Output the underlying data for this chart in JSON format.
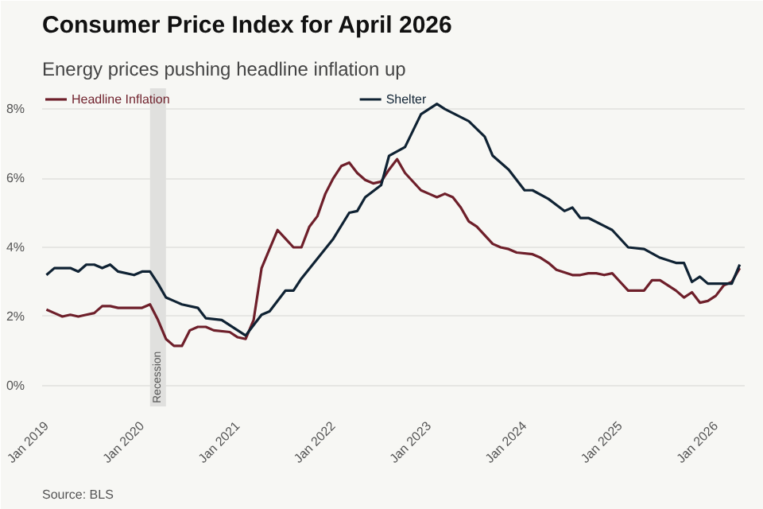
{
  "chart_data": {
    "type": "line",
    "title": "Consumer Price Index for April 2026",
    "subtitle": "Energy prices pushing headline inflation up",
    "annotations": [
      "Source: BLS"
    ],
    "legend": "top left",
    "grid": "y",
    "line_style": "solid",
    "xlim": [
      "2018-12-15",
      "2026-04-20"
    ],
    "xticks": [
      {
        "value": "2019-01",
        "label": "Jan 2019"
      },
      {
        "value": "2020-01",
        "label": "Jan 2020"
      },
      {
        "value": "2021-01",
        "label": "Jan 2021"
      },
      {
        "value": "2022-01",
        "label": "Jan 2022"
      },
      {
        "value": "2023-01",
        "label": "Jan 2023"
      },
      {
        "value": "2024-01",
        "label": "Jan 2024"
      },
      {
        "value": "2025-01",
        "label": "Jan 2025"
      },
      {
        "value": "2026-01",
        "label": "Jan 2026"
      }
    ],
    "ylim": [
      -0.6,
      8.6
    ],
    "yticks": [
      {
        "value": 0,
        "label": "0%"
      },
      {
        "value": 2,
        "label": "2%"
      },
      {
        "value": 4,
        "label": "4%"
      },
      {
        "value": 6,
        "label": "6%"
      },
      {
        "value": 8,
        "label": "8%"
      }
    ],
    "bands": [
      {
        "axis": "x",
        "from": "2020-02",
        "to": "2020-04",
        "label": "Recession",
        "color": "#e0e0de"
      }
    ],
    "series": [
      {
        "name": "Headline Inflation",
        "color": "#6e1f2a",
        "x": [
          "2019-01",
          "2019-02",
          "2019-03",
          "2019-04",
          "2019-05",
          "2019-06",
          "2019-07",
          "2019-08",
          "2019-09",
          "2019-10",
          "2019-12",
          "2020-01",
          "2020-02",
          "2020-03",
          "2020-04",
          "2020-05",
          "2020-06",
          "2020-07",
          "2020-08",
          "2020-09",
          "2020-10",
          "2020-12",
          "2021-01",
          "2021-02",
          "2021-03",
          "2021-04",
          "2021-05",
          "2021-06",
          "2021-07",
          "2021-08",
          "2021-09",
          "2021-10",
          "2021-11",
          "2021-12",
          "2022-01",
          "2022-02",
          "2022-03",
          "2022-04",
          "2022-05",
          "2022-06",
          "2022-07",
          "2022-08",
          "2022-09",
          "2022-10",
          "2022-12",
          "2023-01",
          "2023-02",
          "2023-03",
          "2023-04",
          "2023-05",
          "2023-06",
          "2023-07",
          "2023-09",
          "2023-10",
          "2023-11",
          "2023-12",
          "2024-02",
          "2024-03",
          "2024-04",
          "2024-05",
          "2024-07",
          "2024-08",
          "2024-09",
          "2024-10",
          "2024-11",
          "2024-12",
          "2025-01",
          "2025-02",
          "2025-04",
          "2025-05",
          "2025-06",
          "2025-07",
          "2025-08",
          "2025-09",
          "2025-10",
          "2025-11",
          "2025-12",
          "2026-01",
          "2026-02",
          "2026-03",
          "2026-04"
        ],
        "values": [
          2.2,
          2.1,
          2.0,
          2.05,
          2.0,
          2.05,
          2.1,
          2.3,
          2.3,
          2.25,
          2.25,
          2.25,
          2.35,
          1.9,
          1.35,
          1.15,
          1.15,
          1.6,
          1.7,
          1.7,
          1.6,
          1.55,
          1.4,
          1.35,
          1.9,
          3.4,
          3.95,
          4.5,
          4.25,
          4.0,
          4.0,
          4.6,
          4.9,
          5.55,
          6.0,
          6.35,
          6.45,
          6.15,
          5.95,
          5.85,
          5.9,
          6.25,
          6.55,
          6.15,
          5.65,
          5.55,
          5.45,
          5.55,
          5.45,
          5.15,
          4.75,
          4.6,
          4.1,
          4.0,
          3.95,
          3.85,
          3.8,
          3.7,
          3.55,
          3.35,
          3.2,
          3.2,
          3.25,
          3.25,
          3.2,
          3.25,
          3.0,
          2.75,
          2.75,
          3.05,
          3.05,
          2.9,
          2.75,
          2.55,
          2.7,
          2.4,
          2.45,
          2.6,
          2.9,
          3.0,
          3.4
        ]
      },
      {
        "name": "Shelter",
        "color": "#0f2233",
        "x": [
          "2019-01",
          "2019-02",
          "2019-04",
          "2019-05",
          "2019-06",
          "2019-07",
          "2019-08",
          "2019-09",
          "2019-10",
          "2019-12",
          "2020-01",
          "2020-02",
          "2020-03",
          "2020-04",
          "2020-05",
          "2020-06",
          "2020-08",
          "2020-09",
          "2020-11",
          "2021-01",
          "2021-02",
          "2021-03",
          "2021-04",
          "2021-05",
          "2021-07",
          "2021-08",
          "2021-09",
          "2022-01",
          "2022-03",
          "2022-04",
          "2022-05",
          "2022-07",
          "2022-08",
          "2022-10",
          "2022-12",
          "2023-02",
          "2023-03",
          "2023-06",
          "2023-08",
          "2023-09",
          "2023-11",
          "2024-01",
          "2024-02",
          "2024-04",
          "2024-06",
          "2024-07",
          "2024-08",
          "2024-09",
          "2024-12",
          "2025-02",
          "2025-04",
          "2025-06",
          "2025-08",
          "2025-09",
          "2025-10",
          "2025-11",
          "2025-12",
          "2026-02",
          "2026-03",
          "2026-04"
        ],
        "values": [
          3.2,
          3.4,
          3.4,
          3.3,
          3.5,
          3.5,
          3.4,
          3.5,
          3.3,
          3.2,
          3.3,
          3.3,
          2.95,
          2.55,
          2.45,
          2.35,
          2.25,
          1.95,
          1.9,
          1.6,
          1.45,
          1.75,
          2.05,
          2.15,
          2.75,
          2.75,
          3.1,
          4.25,
          5.0,
          5.05,
          5.45,
          5.8,
          6.65,
          6.9,
          7.85,
          8.15,
          8.0,
          7.65,
          7.2,
          6.65,
          6.25,
          5.65,
          5.65,
          5.4,
          5.05,
          5.15,
          4.85,
          4.85,
          4.5,
          4.0,
          3.95,
          3.7,
          3.55,
          3.55,
          3.0,
          3.15,
          2.95,
          2.95,
          2.95,
          3.5
        ]
      }
    ]
  }
}
